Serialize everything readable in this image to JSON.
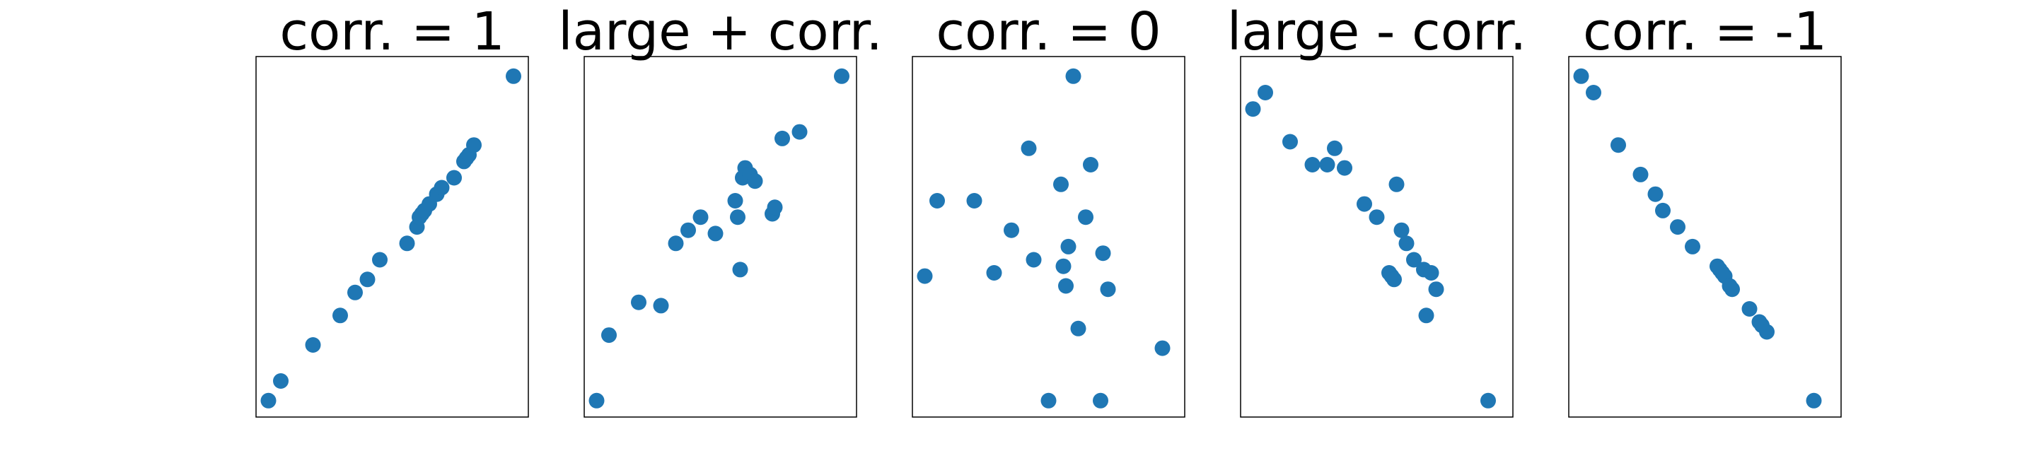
{
  "figure": {
    "background": "#ffffff",
    "marker_color": "#1f77b4"
  },
  "chart_data": [
    {
      "type": "scatter",
      "title": "corr. = 1",
      "axes_visible": false,
      "xlim": [
        -0.05,
        1.05
      ],
      "ylim": [
        -0.05,
        1.05
      ],
      "x": [
        0.0,
        0.05,
        0.18,
        0.29,
        0.35,
        0.4,
        0.45,
        0.56,
        0.6,
        0.61,
        0.62,
        0.63,
        0.65,
        0.68,
        0.7,
        0.75,
        0.79,
        0.8,
        0.81,
        0.83,
        0.99
      ],
      "y": [
        0.0,
        0.06,
        0.17,
        0.26,
        0.33,
        0.37,
        0.43,
        0.48,
        0.53,
        0.56,
        0.57,
        0.58,
        0.6,
        0.63,
        0.65,
        0.68,
        0.73,
        0.74,
        0.75,
        0.78,
        0.99
      ]
    },
    {
      "type": "scatter",
      "title": "large + corr.",
      "axes_visible": false,
      "xlim": [
        -0.05,
        1.05
      ],
      "ylim": [
        -0.05,
        1.05
      ],
      "x": [
        0.0,
        0.05,
        0.17,
        0.26,
        0.32,
        0.37,
        0.42,
        0.48,
        0.56,
        0.57,
        0.58,
        0.59,
        0.6,
        0.62,
        0.64,
        0.71,
        0.72,
        0.75,
        0.82,
        0.99
      ],
      "y": [
        0.0,
        0.2,
        0.3,
        0.29,
        0.48,
        0.52,
        0.56,
        0.51,
        0.61,
        0.56,
        0.4,
        0.68,
        0.71,
        0.69,
        0.67,
        0.57,
        0.59,
        0.8,
        0.82,
        0.99
      ],
      "_note_removed": true
    },
    {
      "type": "scatter",
      "title": "corr. = 0",
      "axes_visible": false,
      "xlim": [
        -0.05,
        1.05
      ],
      "ylim": [
        -0.05,
        1.05
      ],
      "x": [
        0.0,
        0.05,
        0.2,
        0.28,
        0.35,
        0.42,
        0.44,
        0.5,
        0.55,
        0.56,
        0.57,
        0.58,
        0.6,
        0.62,
        0.65,
        0.67,
        0.71,
        0.72,
        0.74,
        0.96
      ],
      "y": [
        0.38,
        0.61,
        0.61,
        0.39,
        0.52,
        0.77,
        0.43,
        0.0,
        0.66,
        0.41,
        0.35,
        0.47,
        0.99,
        0.22,
        0.56,
        0.72,
        0.0,
        0.45,
        0.34,
        0.16
      ]
    },
    {
      "type": "scatter",
      "title": "large - corr.",
      "axes_visible": false,
      "xlim": [
        -0.05,
        1.05
      ],
      "ylim": [
        -0.05,
        1.05
      ],
      "x": [
        0.0,
        0.05,
        0.15,
        0.24,
        0.3,
        0.33,
        0.37,
        0.45,
        0.5,
        0.55,
        0.56,
        0.57,
        0.58,
        0.6,
        0.62,
        0.65,
        0.69,
        0.7,
        0.72,
        0.74,
        0.95
      ],
      "y": [
        0.89,
        0.94,
        0.79,
        0.72,
        0.72,
        0.77,
        0.71,
        0.6,
        0.56,
        0.39,
        0.38,
        0.37,
        0.66,
        0.52,
        0.48,
        0.43,
        0.4,
        0.26,
        0.39,
        0.34,
        0.0
      ]
    },
    {
      "type": "scatter",
      "title": "corr. = -1",
      "axes_visible": false,
      "xlim": [
        -0.05,
        1.05
      ],
      "ylim": [
        -0.05,
        1.05
      ],
      "x": [
        0.0,
        0.05,
        0.15,
        0.24,
        0.3,
        0.33,
        0.39,
        0.45,
        0.55,
        0.56,
        0.57,
        0.58,
        0.6,
        0.61,
        0.68,
        0.72,
        0.73,
        0.75,
        0.94
      ],
      "y": [
        0.99,
        0.94,
        0.78,
        0.69,
        0.63,
        0.58,
        0.53,
        0.47,
        0.41,
        0.4,
        0.39,
        0.38,
        0.35,
        0.34,
        0.28,
        0.24,
        0.23,
        0.21,
        0.0
      ]
    }
  ]
}
